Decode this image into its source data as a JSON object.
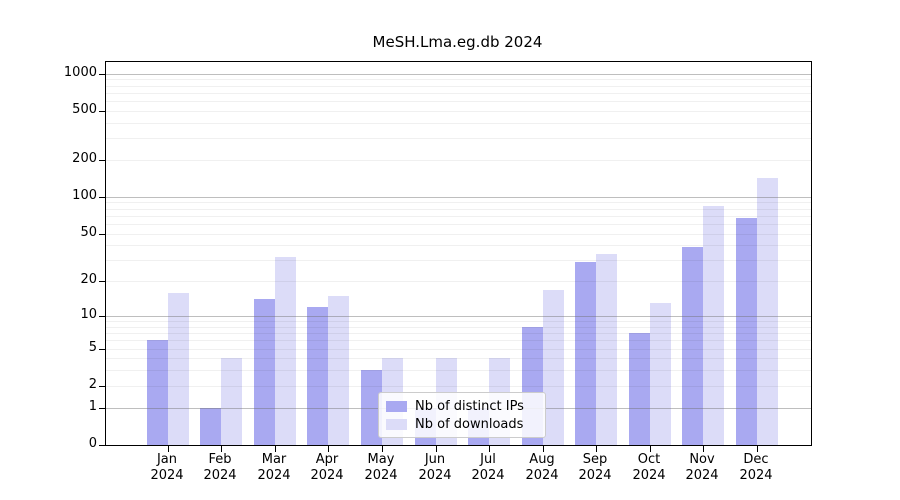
{
  "title": "MeSH.Lma.eg.db 2024",
  "colors": {
    "distinct_ips_bar": "#a9a9f1",
    "downloads_bar": "#dcdcf8"
  },
  "y_axis": {
    "tick_labels": [
      "1000",
      "500",
      "200",
      "100",
      "50",
      "20",
      "10",
      "5",
      "2",
      "1",
      "0"
    ]
  },
  "x_axis": {
    "tick_labels": [
      "Jan 2024",
      "Feb 2024",
      "Mar 2024",
      "Apr 2024",
      "May 2024",
      "Jun 2024",
      "Jul 2024",
      "Aug 2024",
      "Sep 2024",
      "Oct 2024",
      "Nov 2024",
      "Dec 2024"
    ]
  },
  "legend": {
    "items": [
      "Nb of distinct IPs",
      "Nb of downloads"
    ]
  },
  "chart_data": {
    "type": "bar",
    "title": "MeSH.Lma.eg.db 2024",
    "categories": [
      "Jan 2024",
      "Feb 2024",
      "Mar 2024",
      "Apr 2024",
      "May 2024",
      "Jun 2024",
      "Jul 2024",
      "Aug 2024",
      "Sep 2024",
      "Oct 2024",
      "Nov 2024",
      "Dec 2024"
    ],
    "series": [
      {
        "name": "Nb of distinct IPs",
        "values": [
          6,
          1,
          14,
          12,
          3,
          1,
          1,
          8,
          29,
          7,
          39,
          67
        ]
      },
      {
        "name": "Nb of downloads",
        "values": [
          16,
          4,
          32,
          15,
          4,
          4,
          4,
          17,
          34,
          13,
          84,
          142
        ]
      }
    ],
    "yscale": "log1p",
    "yticks": [
      0,
      1,
      2,
      5,
      10,
      20,
      50,
      100,
      200,
      500,
      1000
    ],
    "ylim": [
      0,
      1250
    ],
    "grid": true,
    "legend_position": "lower center"
  }
}
